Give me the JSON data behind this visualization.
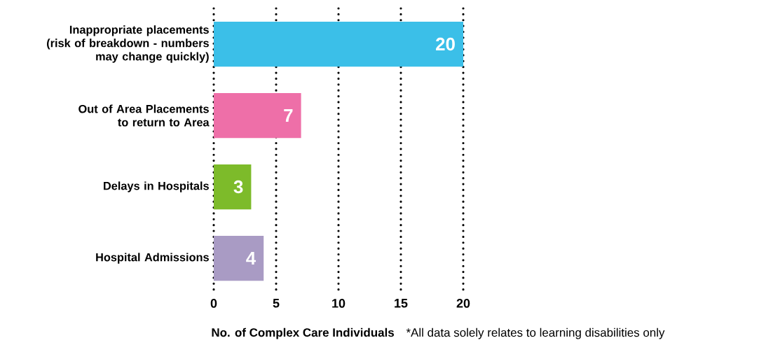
{
  "chart_data": {
    "type": "bar",
    "orientation": "horizontal",
    "categories": [
      "Inappropriate placements (risk of breakdown - numbers may change quickly)",
      "Out of Area Placements to return to Area",
      "Delays in Hospitals",
      "Hospital Admissions"
    ],
    "values": [
      20,
      7,
      3,
      4
    ],
    "colors": [
      "#3bbfe8",
      "#ee6fa8",
      "#7dbb2a",
      "#a99bc4"
    ],
    "xlim": [
      0,
      20
    ],
    "xticks": [
      0,
      5,
      10,
      15,
      20
    ],
    "grid": "x",
    "data_labels": true,
    "xlabel": "No. of Complex Care Individuals",
    "annotations": [
      "*All data solely relates to learning disabilities only"
    ]
  }
}
